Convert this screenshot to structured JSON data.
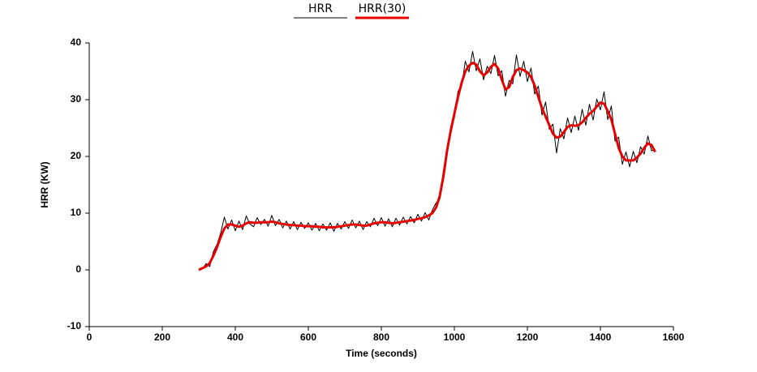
{
  "chart_data": {
    "type": "line",
    "x_label": "Time (seconds)",
    "y_label": "HRR (KW)",
    "xlim": [
      0,
      1600
    ],
    "xticks": [
      0,
      200,
      400,
      600,
      800,
      1000,
      1200,
      1400,
      1600
    ],
    "ylim": [
      -10,
      40
    ],
    "yticks": [
      -10,
      0,
      10,
      20,
      30,
      40
    ],
    "grid": false,
    "legend": "top",
    "x": [
      300,
      310,
      320,
      330,
      340,
      350,
      360,
      370,
      380,
      390,
      400,
      410,
      420,
      430,
      440,
      450,
      460,
      470,
      480,
      490,
      500,
      510,
      520,
      530,
      540,
      550,
      560,
      570,
      580,
      590,
      600,
      610,
      620,
      630,
      640,
      650,
      660,
      670,
      680,
      690,
      700,
      710,
      720,
      730,
      740,
      750,
      760,
      770,
      780,
      790,
      800,
      810,
      820,
      830,
      840,
      850,
      860,
      870,
      880,
      890,
      900,
      910,
      920,
      930,
      940,
      950,
      960,
      970,
      980,
      990,
      1000,
      1010,
      1020,
      1030,
      1040,
      1050,
      1060,
      1070,
      1080,
      1090,
      1100,
      1110,
      1120,
      1130,
      1140,
      1150,
      1160,
      1170,
      1180,
      1190,
      1200,
      1210,
      1220,
      1230,
      1240,
      1250,
      1260,
      1270,
      1280,
      1290,
      1300,
      1310,
      1320,
      1330,
      1340,
      1350,
      1360,
      1370,
      1380,
      1390,
      1400,
      1410,
      1420,
      1430,
      1440,
      1450,
      1460,
      1470,
      1480,
      1490,
      1500,
      1510,
      1520,
      1530,
      1540,
      1550
    ],
    "series": [
      {
        "name": "HRR",
        "color": "#000000",
        "width": 1,
        "values": [
          0.1,
          0.2,
          1.1,
          0.6,
          3.2,
          4.5,
          6.5,
          9.3,
          7.2,
          8.8,
          6.9,
          8.6,
          7.1,
          9.5,
          8.1,
          7.6,
          9.2,
          8.0,
          8.9,
          7.7,
          9.6,
          7.8,
          8.9,
          7.4,
          8.6,
          7.2,
          8.5,
          7.1,
          8.4,
          7.3,
          8.3,
          7.0,
          8.2,
          6.9,
          8.1,
          7.0,
          8.3,
          6.8,
          8.2,
          7.2,
          8.5,
          7.3,
          8.8,
          7.4,
          8.6,
          7.1,
          8.5,
          7.6,
          9.1,
          7.8,
          9.2,
          7.7,
          9.0,
          7.6,
          9.1,
          7.9,
          9.3,
          8.1,
          9.4,
          8.3,
          9.8,
          8.6,
          10.1,
          8.8,
          10.6,
          11.8,
          12.4,
          17.5,
          20.2,
          25.3,
          26.8,
          31.5,
          32.4,
          36.8,
          34.9,
          38.5,
          35.1,
          37.2,
          33.5,
          35.9,
          34.6,
          37.8,
          34.2,
          35.1,
          30.6,
          33.4,
          32.8,
          37.9,
          34.1,
          36.8,
          33.2,
          35.6,
          31.0,
          32.4,
          27.3,
          29.6,
          24.8,
          25.7,
          20.6,
          24.9,
          23.1,
          26.8,
          24.2,
          27.1,
          24.6,
          28.3,
          25.5,
          29.2,
          26.4,
          30.1,
          28.2,
          31.4,
          26.5,
          28.9,
          22.7,
          23.4,
          18.6,
          20.8,
          18.2,
          20.9,
          18.9,
          21.7,
          20.4,
          23.6,
          21.0,
          21.3
        ]
      },
      {
        "name": "HRR(30)",
        "color": "#e60000",
        "width": 3,
        "values": [
          0,
          0.3,
          0.6,
          1.2,
          2.5,
          4,
          5.8,
          7.3,
          8,
          8,
          7.8,
          7.6,
          7.8,
          8.2,
          8.4,
          8.3,
          8.3,
          8.4,
          8.4,
          8.4,
          8.5,
          8.4,
          8.2,
          8.1,
          8,
          7.9,
          7.9,
          7.8,
          7.8,
          7.7,
          7.7,
          7.7,
          7.6,
          7.6,
          7.5,
          7.5,
          7.5,
          7.5,
          7.6,
          7.7,
          7.8,
          7.9,
          8,
          8,
          7.9,
          7.8,
          7.8,
          8,
          8.2,
          8.3,
          8.4,
          8.4,
          8.3,
          8.2,
          8.3,
          8.4,
          8.5,
          8.6,
          8.7,
          8.8,
          9,
          9.1,
          9.3,
          9.6,
          10,
          11,
          13,
          16.5,
          21,
          24.5,
          27.5,
          30.5,
          33,
          35,
          36,
          36.5,
          36.2,
          35,
          34.3,
          34.8,
          35.8,
          36.3,
          35.5,
          33.5,
          31.8,
          32.2,
          34,
          35.2,
          35.5,
          35.2,
          34.8,
          34,
          32.5,
          30.5,
          28.5,
          27,
          25.5,
          24,
          23.3,
          23.5,
          24.3,
          25.2,
          25.5,
          25.4,
          25.5,
          26,
          26.8,
          27.5,
          28,
          28.8,
          29.5,
          29.3,
          28,
          26.5,
          24,
          21.5,
          20,
          19.3,
          19.3,
          19.3,
          19.8,
          20.5,
          21.5,
          22.3,
          22,
          20.8
        ]
      }
    ]
  }
}
